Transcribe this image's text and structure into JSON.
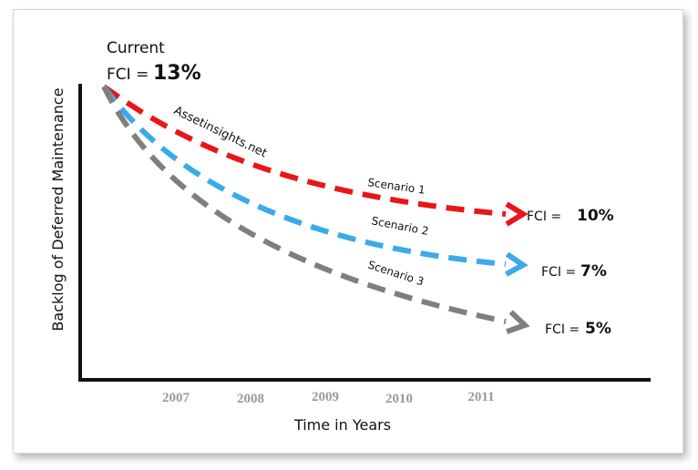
{
  "chart_data": {
    "type": "line",
    "title": "",
    "xlabel": "Time in Years",
    "ylabel": "Backlog of Deferred Maintenance",
    "x_ticks": [
      "2007",
      "2008",
      "2009",
      "2010",
      "2011"
    ],
    "annotations": {
      "current_line1": "Current",
      "current_prefix": "FCI = ",
      "current_value": "13%",
      "watermark": "Assetinsights.net"
    },
    "series": [
      {
        "name": "Scenario 1",
        "color": "#e8161a",
        "end_prefix": "FCI = ",
        "end_value": "10%",
        "start_fci": 13,
        "end_fci": 10
      },
      {
        "name": "Scenario 2",
        "color": "#3aaaea",
        "end_prefix": "FCI = ",
        "end_value": "7%",
        "start_fci": 13,
        "end_fci": 7
      },
      {
        "name": "Scenario 3",
        "color": "#7f7f7f",
        "end_prefix": "FCI = ",
        "end_value": "5%",
        "start_fci": 13,
        "end_fci": 5
      }
    ],
    "grid": false,
    "legend": "none"
  }
}
